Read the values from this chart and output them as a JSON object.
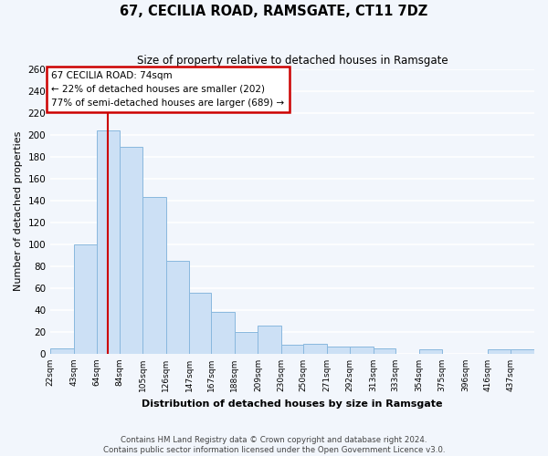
{
  "title": "67, CECILIA ROAD, RAMSGATE, CT11 7DZ",
  "subtitle": "Size of property relative to detached houses in Ramsgate",
  "xlabel": "Distribution of detached houses by size in Ramsgate",
  "ylabel": "Number of detached properties",
  "bar_color": "#cce0f5",
  "bar_edge_color": "#89b8de",
  "bin_labels": [
    "22sqm",
    "43sqm",
    "64sqm",
    "84sqm",
    "105sqm",
    "126sqm",
    "147sqm",
    "167sqm",
    "188sqm",
    "209sqm",
    "230sqm",
    "250sqm",
    "271sqm",
    "292sqm",
    "313sqm",
    "333sqm",
    "354sqm",
    "375sqm",
    "396sqm",
    "416sqm",
    "437sqm"
  ],
  "bar_heights": [
    5,
    100,
    204,
    189,
    143,
    85,
    56,
    38,
    20,
    26,
    8,
    9,
    7,
    7,
    5,
    0,
    4,
    0,
    0,
    4,
    4
  ],
  "ylim": [
    0,
    260
  ],
  "yticks": [
    0,
    20,
    40,
    60,
    80,
    100,
    120,
    140,
    160,
    180,
    200,
    220,
    240,
    260
  ],
  "property_line_x": 74,
  "annotation_title": "67 CECILIA ROAD: 74sqm",
  "annotation_line1": "← 22% of detached houses are smaller (202)",
  "annotation_line2": "77% of semi-detached houses are larger (689) →",
  "annotation_box_color": "#ffffff",
  "annotation_box_edge_color": "#cc0000",
  "vline_color": "#cc0000",
  "footer1": "Contains HM Land Registry data © Crown copyright and database right 2024.",
  "footer2": "Contains public sector information licensed under the Open Government Licence v3.0.",
  "background_color": "#f2f6fc",
  "plot_background": "#f2f6fc",
  "grid_color": "#ffffff",
  "bin_edges": [
    22,
    43,
    64,
    84,
    105,
    126,
    147,
    167,
    188,
    209,
    230,
    250,
    271,
    292,
    313,
    333,
    354,
    375,
    396,
    416,
    437,
    458
  ]
}
